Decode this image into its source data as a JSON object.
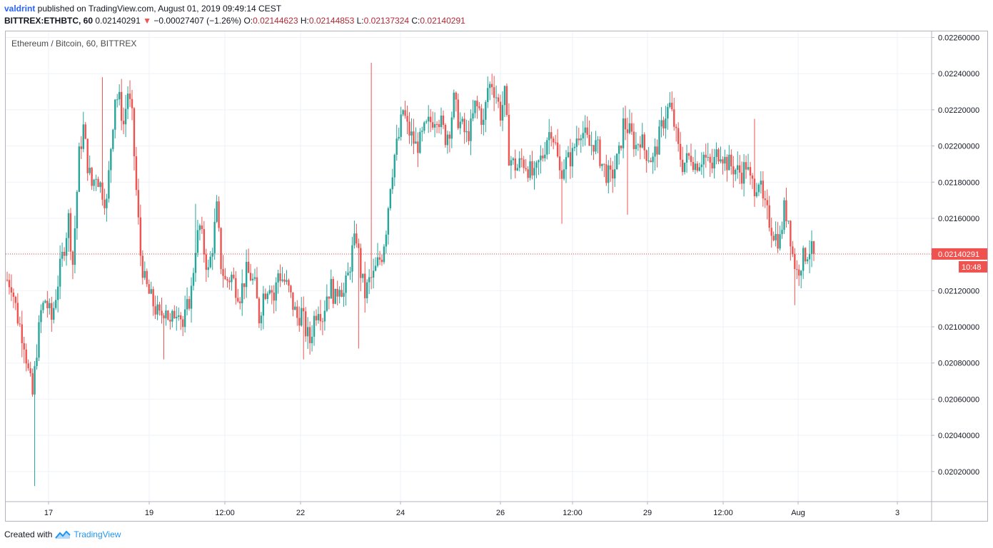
{
  "header": {
    "author": "valdrint",
    "published_text": " published on TradingView.com, August 01, 2019 09:49:14 CEST",
    "symbol": "BITTREX:ETHBTC, 60",
    "last": "0.02140291",
    "arrow": "▼",
    "change": "−0.00027407 (−1.26%)",
    "o_label": "O:",
    "o_value": "0.02144623",
    "h_label": "H:",
    "h_value": "0.02144853",
    "l_label": "L:",
    "l_value": "0.02137324",
    "c_label": "C:",
    "c_value": "0.02140291"
  },
  "footer": {
    "created_with": "Created with",
    "brand": "TradingView"
  },
  "colors": {
    "up": "#26a69a",
    "down": "#ef5350",
    "grid": "#eef2f8",
    "text": "#131722",
    "axis": "#b2b5be"
  },
  "chart_data": {
    "type": "candlestick",
    "title": "Ethereum / Bitcoin, 60, BITTREX",
    "ylim": [
      0.02,
      0.0226
    ],
    "y_ticks": [
      "0.02020000",
      "0.02040000",
      "0.02060000",
      "0.02080000",
      "0.02100000",
      "0.02120000",
      "0.02140000",
      "0.02160000",
      "0.02180000",
      "0.02200000",
      "0.02220000",
      "0.02240000",
      "0.02260000"
    ],
    "x_ticks": [
      "17",
      "19",
      "12:00",
      "22",
      "24",
      "26",
      "12:00",
      "29",
      "12:00",
      "Aug",
      "3"
    ],
    "current_price": "0.02140291",
    "countdown": "10:48",
    "series_path": [
      [
        0,
        0.02126
      ],
      [
        2,
        0.02124
      ],
      [
        5,
        0.02105
      ],
      [
        8,
        0.02092
      ],
      [
        10,
        0.02075
      ],
      [
        12,
        0.02062
      ],
      [
        14,
        0.02088
      ],
      [
        16,
        0.02108
      ],
      [
        18,
        0.02115
      ],
      [
        21,
        0.02104
      ],
      [
        23,
        0.02118
      ],
      [
        25,
        0.02132
      ],
      [
        27,
        0.02145
      ],
      [
        29,
        0.0216
      ],
      [
        31,
        0.02135
      ],
      [
        34,
        0.02195
      ],
      [
        36,
        0.0221
      ],
      [
        38,
        0.0219
      ],
      [
        40,
        0.02178
      ],
      [
        42,
        0.02185
      ],
      [
        45,
        0.02175
      ],
      [
        47,
        0.02168
      ],
      [
        49,
        0.022
      ],
      [
        51,
        0.02228
      ],
      [
        53,
        0.02225
      ],
      [
        55,
        0.02212
      ],
      [
        57,
        0.0223
      ],
      [
        59,
        0.02215
      ],
      [
        61,
        0.02175
      ],
      [
        63,
        0.0214
      ],
      [
        65,
        0.02125
      ],
      [
        67,
        0.02118
      ],
      [
        70,
        0.0211
      ],
      [
        72,
        0.02105
      ],
      [
        75,
        0.02112
      ],
      [
        77,
        0.021
      ],
      [
        79,
        0.02108
      ],
      [
        81,
        0.02112
      ],
      [
        83,
        0.021
      ],
      [
        85,
        0.0211
      ],
      [
        87,
        0.0212
      ],
      [
        89,
        0.02145
      ],
      [
        91,
        0.02155
      ],
      [
        93,
        0.02142
      ],
      [
        95,
        0.0213
      ],
      [
        97,
        0.02145
      ],
      [
        99,
        0.02165
      ],
      [
        101,
        0.02135
      ],
      [
        103,
        0.02125
      ],
      [
        106,
        0.02128
      ],
      [
        108,
        0.02122
      ],
      [
        110,
        0.02118
      ],
      [
        113,
        0.0213
      ],
      [
        115,
        0.02128
      ],
      [
        117,
        0.02122
      ],
      [
        119,
        0.02105
      ],
      [
        121,
        0.02118
      ],
      [
        124,
        0.02125
      ],
      [
        126,
        0.02115
      ],
      [
        128,
        0.0213
      ],
      [
        131,
        0.02125
      ],
      [
        133,
        0.0212
      ],
      [
        135,
        0.02112
      ],
      [
        137,
        0.02105
      ],
      [
        139,
        0.02108
      ],
      [
        141,
        0.02098
      ],
      [
        143,
        0.02092
      ],
      [
        145,
        0.02105
      ],
      [
        147,
        0.02112
      ],
      [
        149,
        0.02106
      ],
      [
        151,
        0.02118
      ],
      [
        153,
        0.02122
      ],
      [
        155,
        0.02115
      ],
      [
        157,
        0.02125
      ],
      [
        159,
        0.02118
      ],
      [
        161,
        0.02128
      ],
      [
        163,
        0.02142
      ],
      [
        165,
        0.0215
      ],
      [
        167,
        0.0213
      ],
      [
        169,
        0.02118
      ],
      [
        171,
        0.02125
      ],
      [
        173,
        0.02128
      ],
      [
        175,
        0.02135
      ],
      [
        177,
        0.0214
      ],
      [
        179,
        0.02155
      ],
      [
        181,
        0.0218
      ],
      [
        183,
        0.02195
      ],
      [
        185,
        0.02205
      ],
      [
        187,
        0.0222
      ],
      [
        189,
        0.0221
      ],
      [
        191,
        0.02205
      ],
      [
        193,
        0.022
      ],
      [
        195,
        0.02202
      ],
      [
        197,
        0.02208
      ],
      [
        199,
        0.02212
      ],
      [
        201,
        0.02215
      ],
      [
        203,
        0.02218
      ],
      [
        205,
        0.02212
      ],
      [
        207,
        0.02205
      ],
      [
        209,
        0.0221
      ],
      [
        211,
        0.02225
      ],
      [
        213,
        0.02215
      ],
      [
        215,
        0.0221
      ],
      [
        217,
        0.02205
      ],
      [
        219,
        0.0221
      ],
      [
        221,
        0.02222
      ],
      [
        223,
        0.0222
      ],
      [
        225,
        0.02212
      ],
      [
        227,
        0.02232
      ],
      [
        229,
        0.02235
      ],
      [
        231,
        0.02228
      ],
      [
        233,
        0.02218
      ],
      [
        235,
        0.02228
      ],
      [
        237,
        0.02195
      ],
      [
        239,
        0.0219
      ],
      [
        241,
        0.02188
      ],
      [
        243,
        0.02192
      ],
      [
        245,
        0.0219
      ],
      [
        247,
        0.02186
      ],
      [
        249,
        0.02182
      ],
      [
        251,
        0.0219
      ],
      [
        253,
        0.02195
      ],
      [
        255,
        0.02205
      ],
      [
        257,
        0.0221
      ],
      [
        259,
        0.022
      ],
      [
        261,
        0.02185
      ],
      [
        263,
        0.0219
      ],
      [
        265,
        0.02192
      ],
      [
        267,
        0.02195
      ],
      [
        269,
        0.02205
      ],
      [
        271,
        0.0221
      ],
      [
        273,
        0.02205
      ],
      [
        275,
        0.022
      ],
      [
        277,
        0.02202
      ],
      [
        279,
        0.02198
      ],
      [
        281,
        0.0219
      ],
      [
        283,
        0.02185
      ],
      [
        285,
        0.02182
      ],
      [
        287,
        0.02188
      ],
      [
        289,
        0.02195
      ],
      [
        291,
        0.02212
      ],
      [
        293,
        0.0221
      ],
      [
        295,
        0.02205
      ],
      [
        297,
        0.022
      ],
      [
        299,
        0.02205
      ],
      [
        301,
        0.02198
      ],
      [
        303,
        0.02195
      ],
      [
        305,
        0.02192
      ],
      [
        307,
        0.022
      ],
      [
        309,
        0.0221
      ],
      [
        311,
        0.02218
      ],
      [
        313,
        0.02222
      ],
      [
        315,
        0.02212
      ],
      [
        317,
        0.02198
      ],
      [
        319,
        0.0219
      ],
      [
        321,
        0.02192
      ],
      [
        323,
        0.02195
      ],
      [
        325,
        0.0219
      ],
      [
        327,
        0.02192
      ],
      [
        329,
        0.02195
      ],
      [
        331,
        0.0219
      ],
      [
        333,
        0.02188
      ],
      [
        335,
        0.02195
      ],
      [
        337,
        0.02198
      ],
      [
        339,
        0.02192
      ],
      [
        341,
        0.0219
      ],
      [
        343,
        0.02188
      ],
      [
        345,
        0.02186
      ],
      [
        347,
        0.02185
      ],
      [
        349,
        0.0219
      ],
      [
        351,
        0.0218
      ],
      [
        353,
        0.02178
      ],
      [
        355,
        0.02182
      ],
      [
        357,
        0.02168
      ],
      [
        359,
        0.02162
      ],
      [
        361,
        0.02155
      ],
      [
        363,
        0.0215
      ],
      [
        365,
        0.02148
      ],
      [
        367,
        0.02165
      ],
      [
        369,
        0.0216
      ],
      [
        371,
        0.0214
      ],
      [
        373,
        0.0213
      ],
      [
        375,
        0.02136
      ],
      [
        377,
        0.0214
      ],
      [
        379,
        0.02143
      ],
      [
        381,
        0.0214
      ]
    ]
  }
}
